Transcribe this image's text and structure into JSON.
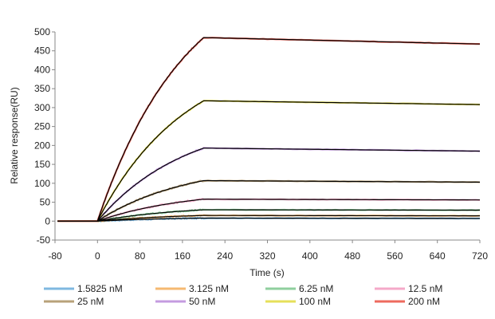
{
  "chart_data": {
    "type": "line",
    "title": "",
    "xlabel": "Time (s)",
    "ylabel": "Relative response(RU)",
    "xlim": [
      -80,
      720
    ],
    "ylim": [
      -50,
      500
    ],
    "x_ticks": [
      -80,
      0,
      80,
      160,
      240,
      320,
      400,
      480,
      560,
      640,
      720
    ],
    "y_ticks": [
      -50,
      0,
      50,
      100,
      150,
      200,
      250,
      300,
      350,
      400,
      450,
      500
    ],
    "grid": false,
    "legend_position": "bottom",
    "fit_color": "#000000",
    "association_end": 200,
    "series": [
      {
        "name": "1.5825 nM",
        "color": "#7fb8e0",
        "x": [
          -75,
          0,
          200,
          720
        ],
        "values": [
          0,
          0,
          8,
          7
        ]
      },
      {
        "name": "3.125 nM",
        "color": "#f5b971",
        "x": [
          -75,
          0,
          200,
          720
        ],
        "values": [
          0,
          0,
          15,
          14
        ]
      },
      {
        "name": "6.25 nM",
        "color": "#8fcf9e",
        "x": [
          -75,
          0,
          200,
          720
        ],
        "values": [
          0,
          0,
          30,
          29
        ]
      },
      {
        "name": "12.5 nM",
        "color": "#f4a9c8",
        "x": [
          -75,
          0,
          200,
          720
        ],
        "values": [
          0,
          0,
          58,
          56
        ]
      },
      {
        "name": "25 nM",
        "color": "#b8a27a",
        "x": [
          -75,
          0,
          200,
          720
        ],
        "values": [
          0,
          0,
          107,
          103
        ]
      },
      {
        "name": "50 nM",
        "color": "#c49be0",
        "x": [
          -75,
          0,
          200,
          720
        ],
        "values": [
          0,
          0,
          193,
          185
        ]
      },
      {
        "name": "100 nM",
        "color": "#e6e05a",
        "x": [
          -75,
          0,
          200,
          720
        ],
        "values": [
          0,
          0,
          318,
          308
        ]
      },
      {
        "name": "200 nM",
        "color": "#ee6a5e",
        "x": [
          -75,
          0,
          200,
          720
        ],
        "values": [
          0,
          0,
          485,
          468
        ]
      }
    ]
  }
}
